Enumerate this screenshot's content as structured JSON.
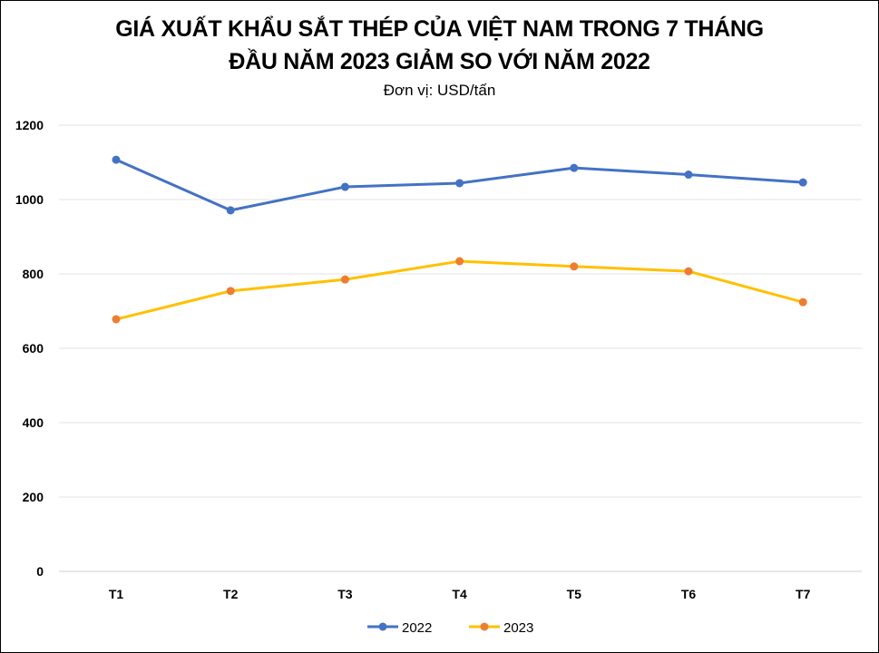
{
  "chart_data": {
    "type": "line",
    "title": "GIÁ XUẤT KHẨU SẮT THÉP CỦA VIỆT NAM TRONG 7 THÁNG\nĐẦU NĂM 2023 GIẢM SO VỚI NĂM 2022",
    "subtitle": "Đơn vị: USD/tấn",
    "categories": [
      "T1",
      "T2",
      "T3",
      "T4",
      "T5",
      "T6",
      "T7"
    ],
    "ylim": [
      0,
      1200
    ],
    "yticks": [
      0,
      200,
      400,
      600,
      800,
      1000,
      1200
    ],
    "grid": true,
    "legend_position": "bottom",
    "series": [
      {
        "name": "2022",
        "color": "#4472C4",
        "values": [
          1107,
          971,
          1034,
          1044,
          1085,
          1067,
          1046
        ]
      },
      {
        "name": "2023",
        "color": "#ED7D31",
        "line_color": "#FFC000",
        "values": [
          678,
          754,
          785,
          834,
          820,
          807,
          724
        ]
      }
    ]
  }
}
